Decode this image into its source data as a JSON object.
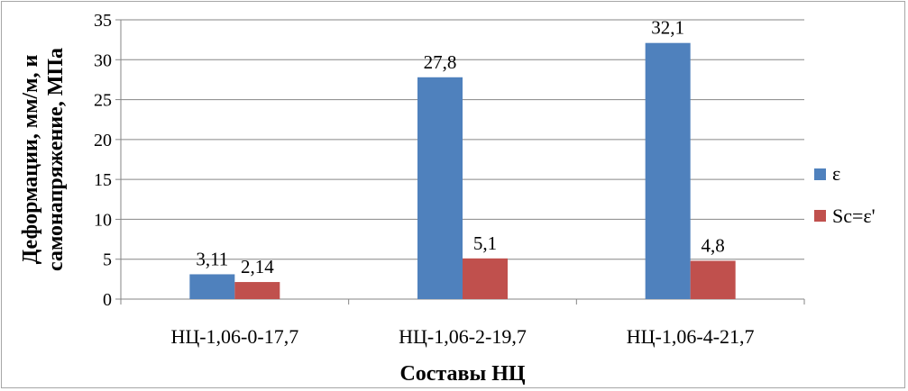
{
  "chart_data": {
    "type": "bar",
    "title": "",
    "xlabel": "Составы НЦ",
    "ylabel_lines": [
      "Деформации, мм/м, и",
      "самонапряжение, МПа"
    ],
    "categories": [
      "НЦ-1,06-0-17,7",
      "НЦ-1,06-2-19,7",
      "НЦ-1,06-4-21,7"
    ],
    "series": [
      {
        "name": "ε",
        "color": "#4f81bd",
        "values": [
          3.11,
          27.8,
          32.1
        ],
        "labels": [
          "3,11",
          "27,8",
          "32,1"
        ]
      },
      {
        "name": "Sc=ε'",
        "color": "#c0504d",
        "values": [
          2.14,
          5.1,
          4.8
        ],
        "labels": [
          "2,14",
          "5,1",
          "4,8"
        ]
      }
    ],
    "ylim": [
      0,
      35
    ],
    "yticks": [
      0,
      5,
      10,
      15,
      20,
      25,
      30,
      35
    ],
    "grid": true,
    "legend": "right"
  }
}
